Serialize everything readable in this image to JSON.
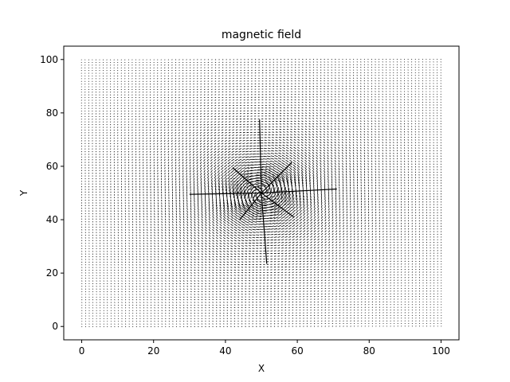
{
  "chart_data": {
    "type": "quiver",
    "title": "magnetic field",
    "xlabel": "X",
    "ylabel": "Y",
    "xlim": [
      -5,
      105
    ],
    "ylim": [
      -5,
      105
    ],
    "xticks": [
      0,
      20,
      40,
      60,
      80,
      100
    ],
    "yticks": [
      0,
      20,
      40,
      60,
      80,
      100
    ],
    "grid": false,
    "field": {
      "description": "vortex field around a current-carrying wire",
      "center": [
        50,
        50
      ],
      "x_range": [
        0,
        100
      ],
      "y_range": [
        0,
        100
      ],
      "samples_per_axis": 100
    },
    "arrow_color": "#000000"
  }
}
